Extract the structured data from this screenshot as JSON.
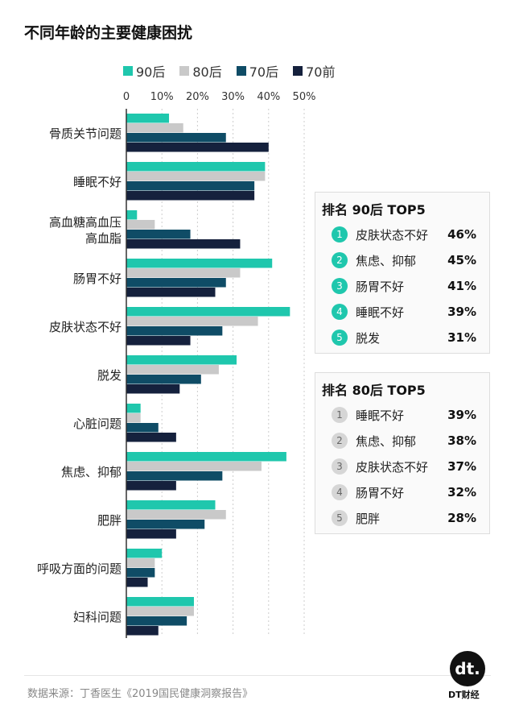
{
  "chart_data": {
    "type": "bar",
    "orientation": "horizontal",
    "title": "不同年龄的主要健康困扰",
    "categories": [
      "骨质关节问题",
      "睡眠不好",
      "高血糖高血压\n高血脂",
      "肠胃不好",
      "皮肤状态不好",
      "脱发",
      "心脏问题",
      "焦虑、抑郁",
      "肥胖",
      "呼吸方面的问题",
      "妇科问题"
    ],
    "series": [
      {
        "name": "90后",
        "color": "#1fc7ad",
        "values": [
          12,
          39,
          3,
          41,
          46,
          31,
          4,
          45,
          25,
          10,
          19
        ]
      },
      {
        "name": "80后",
        "color": "#c9c9c9",
        "values": [
          16,
          39,
          8,
          32,
          37,
          26,
          4,
          38,
          28,
          8,
          19
        ]
      },
      {
        "name": "70后",
        "color": "#0f4c66",
        "values": [
          28,
          36,
          18,
          28,
          27,
          21,
          9,
          27,
          22,
          8,
          17
        ]
      },
      {
        "name": "70前",
        "color": "#15213d",
        "values": [
          40,
          36,
          32,
          25,
          18,
          15,
          14,
          14,
          14,
          6,
          9
        ]
      }
    ],
    "xlim": [
      0,
      50
    ],
    "xticks": [
      "0",
      "10%",
      "20%",
      "30%",
      "40%",
      "50%"
    ],
    "grid": true,
    "legend": "top"
  },
  "top90": {
    "title": "排名 90后 TOP5",
    "items": [
      {
        "rank": "1",
        "name": "皮肤状态不好",
        "pct": "46%"
      },
      {
        "rank": "2",
        "name": "焦虑、抑郁",
        "pct": "45%"
      },
      {
        "rank": "3",
        "name": "肠胃不好",
        "pct": "41%"
      },
      {
        "rank": "4",
        "name": "睡眠不好",
        "pct": "39%"
      },
      {
        "rank": "5",
        "name": "脱发",
        "pct": "31%"
      }
    ]
  },
  "top80": {
    "title": "排名 80后 TOP5",
    "items": [
      {
        "rank": "1",
        "name": "睡眠不好",
        "pct": "39%"
      },
      {
        "rank": "2",
        "name": "焦虑、抑郁",
        "pct": "38%"
      },
      {
        "rank": "3",
        "name": "皮肤状态不好",
        "pct": "37%"
      },
      {
        "rank": "4",
        "name": "肠胃不好",
        "pct": "32%"
      },
      {
        "rank": "5",
        "name": "肥胖",
        "pct": "28%"
      }
    ]
  },
  "source": "数据来源：丁香医生《2019国民健康洞察报告》",
  "logo": {
    "mark": "dt.",
    "text": "DT财经"
  }
}
